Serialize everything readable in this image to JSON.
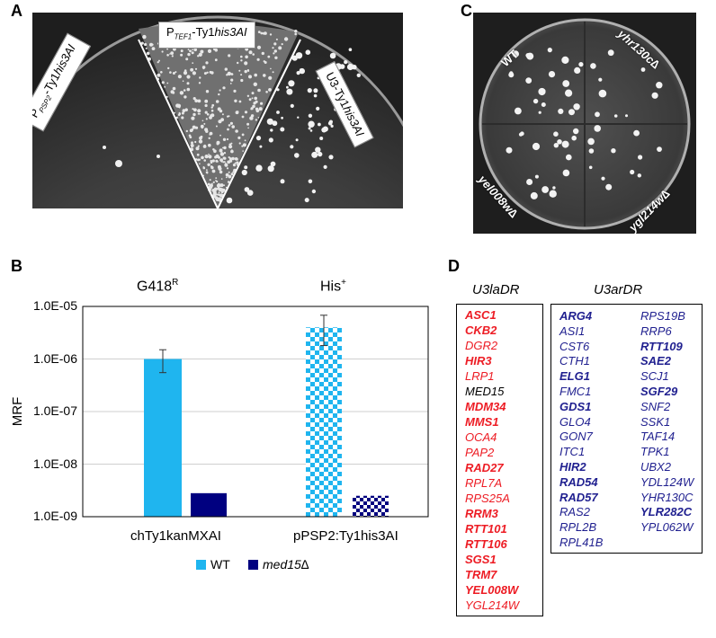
{
  "panel_letters": {
    "a": "A",
    "b": "B",
    "c": "C",
    "d": "D"
  },
  "panelA": {
    "left_label": {
      "prefix": "P",
      "sub": "PSP2",
      "mid": "-Ty1",
      "italic": "his3AI"
    },
    "middle_label": {
      "prefix": "P",
      "sub": "TEF1",
      "mid": "-Ty1",
      "italic": "his3AI"
    },
    "right_label": {
      "prefix": "U3-Ty1",
      "italic": "his3AI"
    }
  },
  "panelC": {
    "labels": {
      "wt": "WT",
      "top_right": "yhr130c∆",
      "bottom_left": "yel008w∆",
      "bottom_right": "ygl214w∆"
    }
  },
  "chart_data": {
    "type": "bar",
    "ylabel": "MRF",
    "yscale": "log",
    "ylim": [
      1e-09,
      1e-05
    ],
    "yticks": [
      "1.0E-05",
      "1.0E-06",
      "1.0E-07",
      "1.0E-08",
      "1.0E-09"
    ],
    "groups": [
      {
        "label": "chTy1kanMXAI",
        "header": "G418",
        "header_sup": "R",
        "bars": [
          {
            "series": "WT",
            "value": 1e-06,
            "error_low": 5.5e-07,
            "error_high": 1.5e-06
          },
          {
            "series": "med15∆",
            "value": 2.8e-09
          }
        ]
      },
      {
        "label": "pPSP2:Ty1his3AI",
        "header": "His",
        "header_sup": "+",
        "bars": [
          {
            "series": "WT",
            "value": 4e-06,
            "error_low": 1.8e-06,
            "error_high": 6.8e-06
          },
          {
            "series": "med15∆",
            "value": 2.5e-09
          }
        ]
      }
    ],
    "series": [
      {
        "name": "WT",
        "color": "#1fb5ef"
      },
      {
        "name": "med15∆",
        "color": "#000080"
      }
    ]
  },
  "panelD": {
    "left_header": "U3laDR",
    "right_header": "U3arDR",
    "left_color": "#ed1c24",
    "right_color": "#1f1f8f",
    "left_genes": [
      {
        "name": "ASC1",
        "bold": true
      },
      {
        "name": "CKB2",
        "bold": true
      },
      {
        "name": "DGR2",
        "bold": false
      },
      {
        "name": "HIR3",
        "bold": true
      },
      {
        "name": "LRP1",
        "bold": false
      },
      {
        "name": "MED15",
        "bold": false,
        "black": true
      },
      {
        "name": "MDM34",
        "bold": true
      },
      {
        "name": "MMS1",
        "bold": true
      },
      {
        "name": "OCA4",
        "bold": false
      },
      {
        "name": "PAP2",
        "bold": false
      },
      {
        "name": "RAD27",
        "bold": true
      },
      {
        "name": "RPL7A",
        "bold": false
      },
      {
        "name": "RPS25A",
        "bold": false
      },
      {
        "name": "RRM3",
        "bold": true
      },
      {
        "name": "RTT101",
        "bold": true
      },
      {
        "name": "RTT106",
        "bold": true
      },
      {
        "name": "SGS1",
        "bold": true
      },
      {
        "name": "TRM7",
        "bold": true
      },
      {
        "name": "YEL008W",
        "bold": true
      },
      {
        "name": "YGL214W",
        "bold": false
      }
    ],
    "right_genes_col1": [
      {
        "name": "ARG4",
        "bold": true
      },
      {
        "name": "ASI1",
        "bold": false
      },
      {
        "name": "CST6",
        "bold": false
      },
      {
        "name": "CTH1",
        "bold": false
      },
      {
        "name": "ELG1",
        "bold": true
      },
      {
        "name": "FMC1",
        "bold": false
      },
      {
        "name": "GDS1",
        "bold": true
      },
      {
        "name": "GLO4",
        "bold": false
      },
      {
        "name": "GON7",
        "bold": false
      },
      {
        "name": "ITC1",
        "bold": false
      },
      {
        "name": "HIR2",
        "bold": true
      },
      {
        "name": "RAD54",
        "bold": true
      },
      {
        "name": "RAD57",
        "bold": true
      },
      {
        "name": "RAS2",
        "bold": false
      },
      {
        "name": "RPL2B",
        "bold": false
      },
      {
        "name": "RPL41B",
        "bold": false
      }
    ],
    "right_genes_col2": [
      {
        "name": "RPS19B",
        "bold": false
      },
      {
        "name": "RRP6",
        "bold": false
      },
      {
        "name": "RTT109",
        "bold": true
      },
      {
        "name": "SAE2",
        "bold": true
      },
      {
        "name": "SCJ1",
        "bold": false
      },
      {
        "name": "SGF29",
        "bold": true
      },
      {
        "name": "SNF2",
        "bold": false
      },
      {
        "name": "SSK1",
        "bold": false
      },
      {
        "name": "TAF14",
        "bold": false
      },
      {
        "name": "TPK1",
        "bold": false
      },
      {
        "name": "UBX2",
        "bold": false
      },
      {
        "name": "YDL124W",
        "bold": false
      },
      {
        "name": "YHR130C",
        "bold": false
      },
      {
        "name": "YLR282C",
        "bold": true
      },
      {
        "name": "YPL062W",
        "bold": false
      }
    ]
  }
}
